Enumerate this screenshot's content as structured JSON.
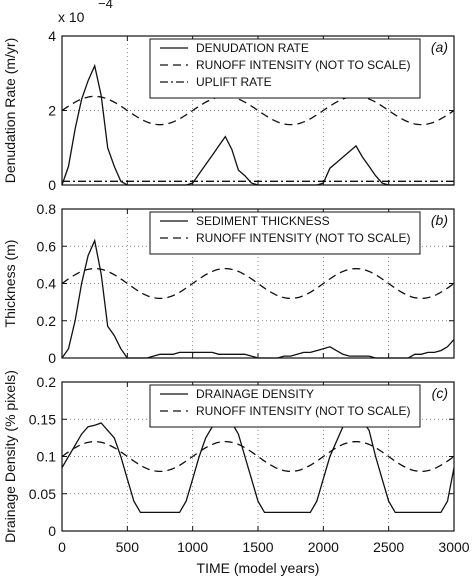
{
  "chart_data": [
    {
      "type": "line",
      "panel_label": "(a)",
      "ylabel": "Denudation Rate (m/yr)",
      "y_multiplier": "x 10",
      "y_multiplier_exp": "−4",
      "xlim": [
        0,
        3000
      ],
      "ylim": [
        0,
        4
      ],
      "yticks": [
        0,
        2,
        4
      ],
      "grid": true,
      "legend_position": "top-right",
      "series": [
        {
          "name": "DENUDATION RATE",
          "style": "solid",
          "x": [
            0,
            50,
            100,
            150,
            200,
            250,
            300,
            350,
            400,
            450,
            500,
            550,
            600,
            650,
            700,
            750,
            800,
            850,
            900,
            950,
            1000,
            1050,
            1100,
            1150,
            1200,
            1250,
            1300,
            1350,
            1400,
            1450,
            1500,
            1550,
            1600,
            1650,
            1700,
            1750,
            1800,
            1850,
            1900,
            1950,
            2000,
            2050,
            2100,
            2150,
            2200,
            2250,
            2300,
            2350,
            2400,
            2450,
            2500,
            2550,
            2600,
            2650,
            2700,
            2750,
            2800,
            2850,
            2900,
            2950,
            3000
          ],
          "values": [
            0,
            0.5,
            1.5,
            2.3,
            2.8,
            3.2,
            2.4,
            1.0,
            0.5,
            0.1,
            0,
            0,
            0,
            0,
            0,
            0,
            0,
            0,
            0,
            0,
            0.05,
            0.3,
            0.55,
            0.8,
            1.05,
            1.3,
            0.95,
            0.4,
            0.25,
            0.05,
            0,
            0,
            0,
            0,
            0,
            0,
            0,
            0,
            0,
            0,
            0.05,
            0.45,
            0.6,
            0.75,
            0.9,
            1.05,
            0.75,
            0.5,
            0.25,
            0.05,
            0,
            0,
            0,
            0,
            0,
            0,
            0,
            0,
            0,
            0,
            0
          ]
        },
        {
          "name": "RUNOFF INTENSITY (NOT TO SCALE)",
          "style": "dashed",
          "period": 1000,
          "mean": 2.0,
          "amplitude": 0.38,
          "peak_x": 250
        },
        {
          "name": "UPLIFT RATE",
          "style": "dashdot",
          "x": [
            0,
            3000
          ],
          "values": [
            0.1,
            0.1
          ]
        }
      ]
    },
    {
      "type": "line",
      "panel_label": "(b)",
      "ylabel": "Thickness (m)",
      "xlim": [
        0,
        3000
      ],
      "ylim": [
        0,
        0.8
      ],
      "yticks": [
        0,
        0.2,
        0.4,
        0.6,
        0.8
      ],
      "grid": true,
      "legend_position": "top-right",
      "series": [
        {
          "name": "SEDIMENT THICKNESS",
          "style": "solid",
          "x": [
            0,
            50,
            100,
            150,
            200,
            250,
            300,
            350,
            400,
            450,
            500,
            550,
            600,
            650,
            700,
            750,
            800,
            850,
            900,
            950,
            1000,
            1050,
            1100,
            1150,
            1200,
            1250,
            1300,
            1350,
            1400,
            1450,
            1500,
            1550,
            1600,
            1650,
            1700,
            1750,
            1800,
            1850,
            1900,
            1950,
            2000,
            2050,
            2100,
            2150,
            2200,
            2250,
            2300,
            2350,
            2400,
            2450,
            2500,
            2550,
            2600,
            2650,
            2700,
            2750,
            2800,
            2850,
            2900,
            2950,
            3000
          ],
          "values": [
            0,
            0.05,
            0.2,
            0.4,
            0.55,
            0.63,
            0.45,
            0.17,
            0.12,
            0.05,
            0,
            0,
            0,
            0,
            0.01,
            0.02,
            0.02,
            0.02,
            0.03,
            0.03,
            0.03,
            0.03,
            0.03,
            0.03,
            0.02,
            0.02,
            0.02,
            0.02,
            0.02,
            0.01,
            0,
            0,
            0,
            0,
            0.01,
            0.01,
            0.02,
            0.03,
            0.03,
            0.04,
            0.05,
            0.06,
            0.04,
            0.02,
            0.01,
            0.01,
            0.01,
            0.01,
            0,
            0,
            0,
            0,
            0,
            0,
            0.02,
            0.02,
            0.03,
            0.03,
            0.04,
            0.06,
            0.1
          ]
        },
        {
          "name": "RUNOFF INTENSITY (NOT TO SCALE)",
          "style": "dashed",
          "period": 1000,
          "mean": 0.4,
          "amplitude": 0.08,
          "peak_x": 250
        }
      ]
    },
    {
      "type": "line",
      "panel_label": "(c)",
      "ylabel": "Drainage Density (% pixels)",
      "xlabel": "TIME (model years)",
      "xlim": [
        0,
        3000
      ],
      "ylim": [
        0,
        0.2
      ],
      "xticks": [
        0,
        500,
        1000,
        1500,
        2000,
        2500,
        3000
      ],
      "yticks": [
        0,
        0.05,
        0.1,
        0.15,
        0.2
      ],
      "grid": true,
      "legend_position": "top-right",
      "series": [
        {
          "name": "DRAINAGE DENSITY",
          "style": "solid",
          "x": [
            0,
            50,
            100,
            150,
            200,
            250,
            300,
            350,
            400,
            450,
            500,
            550,
            600,
            650,
            700,
            750,
            800,
            850,
            900,
            950,
            1000,
            1050,
            1100,
            1150,
            1200,
            1250,
            1300,
            1350,
            1400,
            1450,
            1500,
            1550,
            1600,
            1650,
            1700,
            1750,
            1800,
            1850,
            1900,
            1950,
            2000,
            2050,
            2100,
            2150,
            2200,
            2250,
            2300,
            2350,
            2400,
            2450,
            2500,
            2550,
            2600,
            2650,
            2700,
            2750,
            2800,
            2850,
            2900,
            2950,
            3000
          ],
          "values": [
            0.085,
            0.1,
            0.115,
            0.13,
            0.14,
            0.142,
            0.145,
            0.135,
            0.125,
            0.1,
            0.07,
            0.04,
            0.025,
            0.025,
            0.025,
            0.025,
            0.025,
            0.025,
            0.025,
            0.04,
            0.07,
            0.1,
            0.125,
            0.14,
            0.145,
            0.146,
            0.145,
            0.13,
            0.1,
            0.07,
            0.04,
            0.025,
            0.025,
            0.025,
            0.025,
            0.025,
            0.025,
            0.025,
            0.025,
            0.04,
            0.07,
            0.1,
            0.12,
            0.14,
            0.148,
            0.15,
            0.148,
            0.135,
            0.1,
            0.07,
            0.04,
            0.025,
            0.025,
            0.025,
            0.025,
            0.025,
            0.025,
            0.025,
            0.025,
            0.04,
            0.085
          ]
        },
        {
          "name": "RUNOFF INTENSITY (NOT TO SCALE)",
          "style": "dashed",
          "period": 1000,
          "mean": 0.1,
          "amplitude": 0.02,
          "peak_x": 250
        }
      ]
    }
  ]
}
